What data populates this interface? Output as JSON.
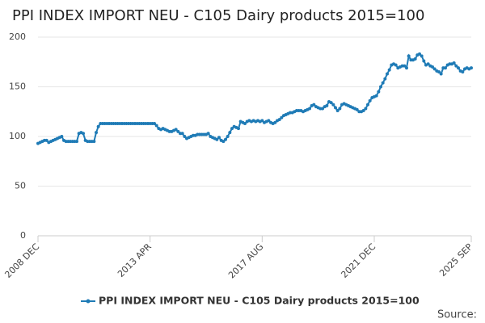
{
  "chart_data": {
    "type": "line",
    "title": "PPI INDEX IMPORT NEU - C105 Dairy products 2015=100",
    "source_label": "Source:",
    "categories": [
      "2008 DEC",
      null,
      null,
      null,
      null,
      null,
      null,
      null,
      null,
      null,
      null,
      null,
      null,
      null,
      null,
      null,
      null,
      null,
      null,
      null,
      null,
      null,
      null,
      null,
      null,
      null,
      null,
      null,
      null,
      null,
      null,
      null,
      null,
      null,
      null,
      null,
      null,
      null,
      null,
      null,
      null,
      null,
      null,
      null,
      null,
      null,
      null,
      null,
      null,
      null,
      null,
      null,
      "2013 APR",
      null,
      null,
      null,
      null,
      null,
      null,
      null,
      null,
      null,
      null,
      null,
      null,
      null,
      null,
      null,
      null,
      null,
      null,
      null,
      null,
      null,
      null,
      null,
      null,
      null,
      null,
      null,
      null,
      null,
      null,
      null,
      null,
      null,
      null,
      null,
      null,
      null,
      null,
      null,
      null,
      null,
      null,
      null,
      null,
      null,
      null,
      null,
      null,
      null,
      null,
      null,
      "2017 AUG",
      null,
      null,
      null,
      null,
      null,
      null,
      null,
      null,
      null,
      null,
      null,
      null,
      null,
      null,
      null,
      null,
      null,
      null,
      null,
      null,
      null,
      null,
      null,
      null,
      null,
      null,
      null,
      null,
      null,
      null,
      null,
      null,
      null,
      null,
      null,
      null,
      null,
      null,
      null,
      null,
      null,
      null,
      null,
      null,
      null,
      null,
      null,
      null,
      null,
      null,
      null,
      "2021 DEC",
      null,
      null,
      null,
      null,
      null,
      null,
      null,
      null,
      null,
      null,
      null,
      null,
      null,
      null,
      null,
      null,
      null,
      null,
      null,
      null,
      null,
      null,
      null,
      null,
      null,
      null,
      null,
      null,
      null,
      null,
      null,
      null,
      null,
      null,
      null,
      null,
      null,
      null,
      null,
      null,
      null,
      null,
      null,
      null,
      "2025 SEP"
    ],
    "series": [
      {
        "name": "PPI INDEX IMPORT NEU - C105 Dairy products 2015=100",
        "color": "#1f7bb6",
        "values": [
          93,
          94,
          95,
          96,
          96,
          94,
          95,
          96,
          97,
          98,
          99,
          100,
          96,
          95,
          95,
          95,
          95,
          95,
          95,
          103,
          104,
          103,
          96,
          95,
          95,
          95,
          95,
          104,
          110,
          113,
          113,
          113,
          113,
          113,
          113,
          113,
          113,
          113,
          113,
          113,
          113,
          113,
          113,
          113,
          113,
          113,
          113,
          113,
          113,
          113,
          113,
          113,
          113,
          113,
          113,
          111,
          108,
          107,
          108,
          107,
          106,
          105,
          105,
          106,
          107,
          105,
          103,
          103,
          100,
          98,
          99,
          100,
          101,
          101,
          102,
          102,
          102,
          102,
          102,
          103,
          100,
          99,
          98,
          97,
          99,
          96,
          95,
          97,
          100,
          104,
          108,
          110,
          109,
          108,
          115,
          114,
          113,
          115,
          116,
          115,
          116,
          115,
          116,
          115,
          116,
          114,
          115,
          116,
          114,
          113,
          114,
          116,
          117,
          119,
          121,
          122,
          123,
          124,
          124,
          125,
          126,
          126,
          126,
          125,
          126,
          127,
          128,
          131,
          132,
          130,
          129,
          128,
          128,
          130,
          131,
          135,
          134,
          132,
          129,
          126,
          128,
          132,
          133,
          132,
          131,
          130,
          129,
          128,
          127,
          125,
          125,
          126,
          128,
          132,
          136,
          139,
          140,
          141,
          145,
          150,
          154,
          158,
          163,
          167,
          172,
          173,
          172,
          169,
          170,
          171,
          171,
          169,
          181,
          177,
          177,
          178,
          182,
          183,
          181,
          176,
          172,
          173,
          171,
          170,
          168,
          166,
          165,
          163,
          169,
          169,
          172,
          173,
          173,
          174,
          171,
          169,
          166,
          165,
          168,
          169,
          168,
          169
        ]
      }
    ],
    "ylim": [
      0,
      200
    ],
    "yticks": [
      0,
      50,
      100,
      150,
      200
    ],
    "grid": true
  }
}
